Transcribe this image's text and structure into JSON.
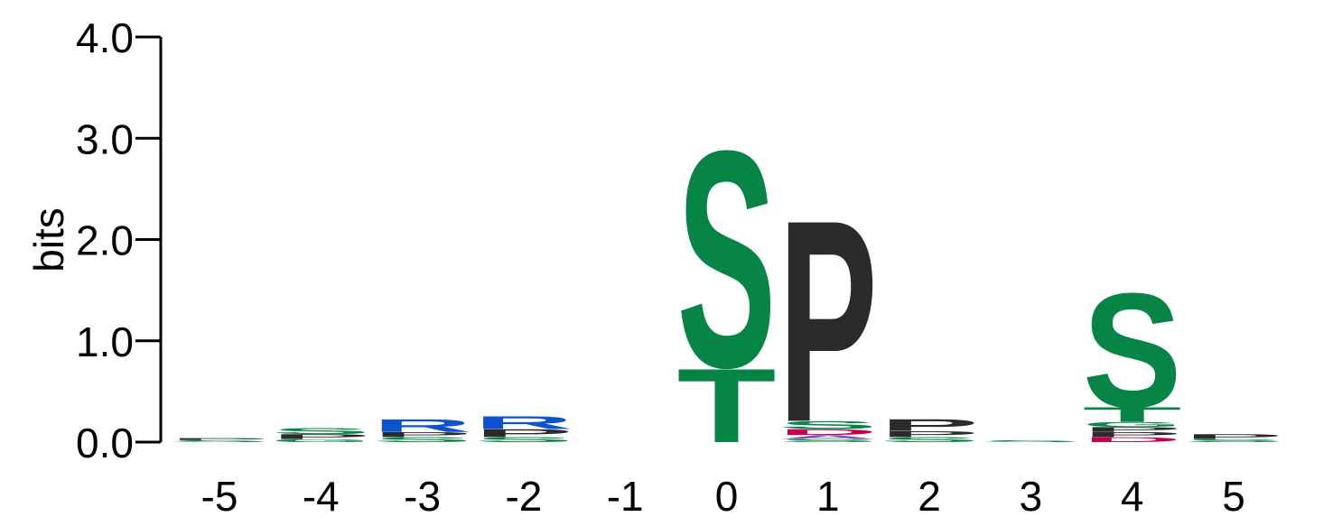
{
  "chart_data": {
    "type": "sequence_logo",
    "ylabel": "bits",
    "ylim": [
      0,
      4.0
    ],
    "y_ticks": [
      "0.0",
      "1.0",
      "2.0",
      "3.0",
      "4.0"
    ],
    "colors": {
      "S": "#078547",
      "T": "#078547",
      "G": "#078547",
      "P": "#2b2b2b",
      "R": "#0b53cf",
      "D": "#c8004f",
      "other": "#7a4bb3"
    },
    "positions": [
      {
        "label": "-5",
        "letters": [
          {
            "char": "S",
            "bits": 0.02
          },
          {
            "char": "P",
            "bits": 0.02
          }
        ]
      },
      {
        "label": "-4",
        "letters": [
          {
            "char": "G",
            "bits": 0.03
          },
          {
            "char": "P",
            "bits": 0.05
          },
          {
            "char": "S",
            "bits": 0.06
          }
        ]
      },
      {
        "label": "-3",
        "letters": [
          {
            "char": "S",
            "bits": 0.05
          },
          {
            "char": "P",
            "bits": 0.05
          },
          {
            "char": "R",
            "bits": 0.13
          }
        ]
      },
      {
        "label": "-2",
        "letters": [
          {
            "char": "S",
            "bits": 0.05
          },
          {
            "char": "P",
            "bits": 0.08
          },
          {
            "char": "R",
            "bits": 0.13
          }
        ]
      },
      {
        "label": "-1",
        "letters": []
      },
      {
        "label": "0",
        "letters": [
          {
            "char": "T",
            "bits": 0.75
          },
          {
            "char": "S",
            "bits": 2.2
          }
        ]
      },
      {
        "label": "1",
        "letters": [
          {
            "char": "S",
            "bits": 0.03
          },
          {
            "char": "A",
            "bits": 0.04
          },
          {
            "char": "D",
            "bits": 0.06
          },
          {
            "char": "S",
            "bits": 0.08
          },
          {
            "char": "P",
            "bits": 2.05
          }
        ]
      },
      {
        "label": "2",
        "letters": [
          {
            "char": "S",
            "bits": 0.05
          },
          {
            "char": "P",
            "bits": 0.06
          },
          {
            "char": "P",
            "bits": 0.12
          }
        ]
      },
      {
        "label": "3",
        "letters": [
          {
            "char": "S",
            "bits": 0.02
          }
        ]
      },
      {
        "label": "4",
        "letters": [
          {
            "char": "D",
            "bits": 0.05
          },
          {
            "char": "P",
            "bits": 0.05
          },
          {
            "char": "P",
            "bits": 0.05
          },
          {
            "char": "G",
            "bits": 0.05
          },
          {
            "char": "T",
            "bits": 0.15
          },
          {
            "char": "S",
            "bits": 1.16
          }
        ]
      },
      {
        "label": "5",
        "letters": [
          {
            "char": "S",
            "bits": 0.03
          },
          {
            "char": "P",
            "bits": 0.05
          }
        ]
      }
    ]
  }
}
